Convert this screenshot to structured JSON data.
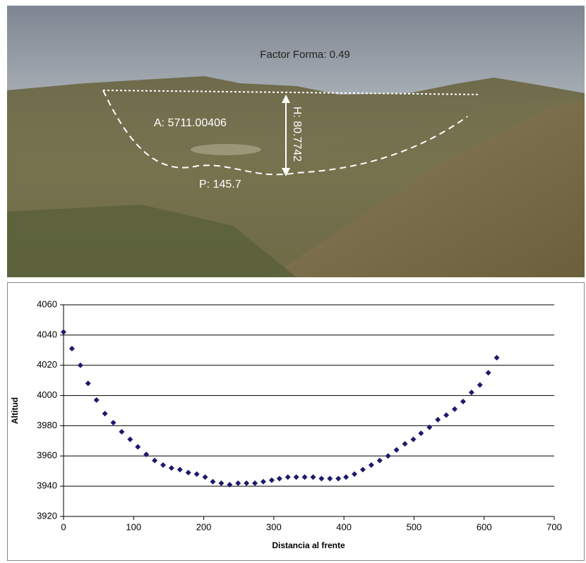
{
  "photo": {
    "title": "Factor Forma: 0.49",
    "area_label": "A: 5711.00406",
    "height_label": "H: 80.7742",
    "perimeter_label": "P: 145.7"
  },
  "chart_data": {
    "type": "scatter",
    "x_label": "Distancia al frente",
    "y_label": "Altitud",
    "color": "#1c1a6b",
    "grid": true,
    "xlim": [
      0,
      700
    ],
    "xticks": [
      0,
      100,
      200,
      300,
      400,
      500,
      600,
      700
    ],
    "ylim": [
      3920,
      4060
    ],
    "yticks": [
      3920,
      3940,
      3960,
      3980,
      4000,
      4020,
      4040,
      4060
    ],
    "x": [
      0,
      12,
      24,
      35,
      47,
      59,
      71,
      83,
      95,
      106,
      118,
      130,
      142,
      154,
      166,
      178,
      190,
      202,
      213,
      225,
      237,
      249,
      261,
      273,
      285,
      297,
      308,
      320,
      332,
      344,
      356,
      368,
      380,
      392,
      403,
      415,
      427,
      439,
      451,
      463,
      475,
      487,
      499,
      510,
      522,
      534,
      546,
      558,
      570,
      582,
      594,
      606,
      618
    ],
    "values": [
      4042,
      4031,
      4020,
      4008,
      3997,
      3988,
      3982,
      3976,
      3971,
      3966,
      3961,
      3957,
      3954,
      3952,
      3951,
      3949,
      3948,
      3946,
      3943,
      3942,
      3941,
      3942,
      3942,
      3942,
      3943,
      3944,
      3945,
      3946,
      3946,
      3946,
      3946,
      3945,
      3945,
      3945,
      3946,
      3948,
      3951,
      3954,
      3957,
      3960,
      3964,
      3968,
      3971,
      3975,
      3979,
      3984,
      3987,
      3991,
      3996,
      4002,
      4007,
      4015,
      4025
    ]
  }
}
